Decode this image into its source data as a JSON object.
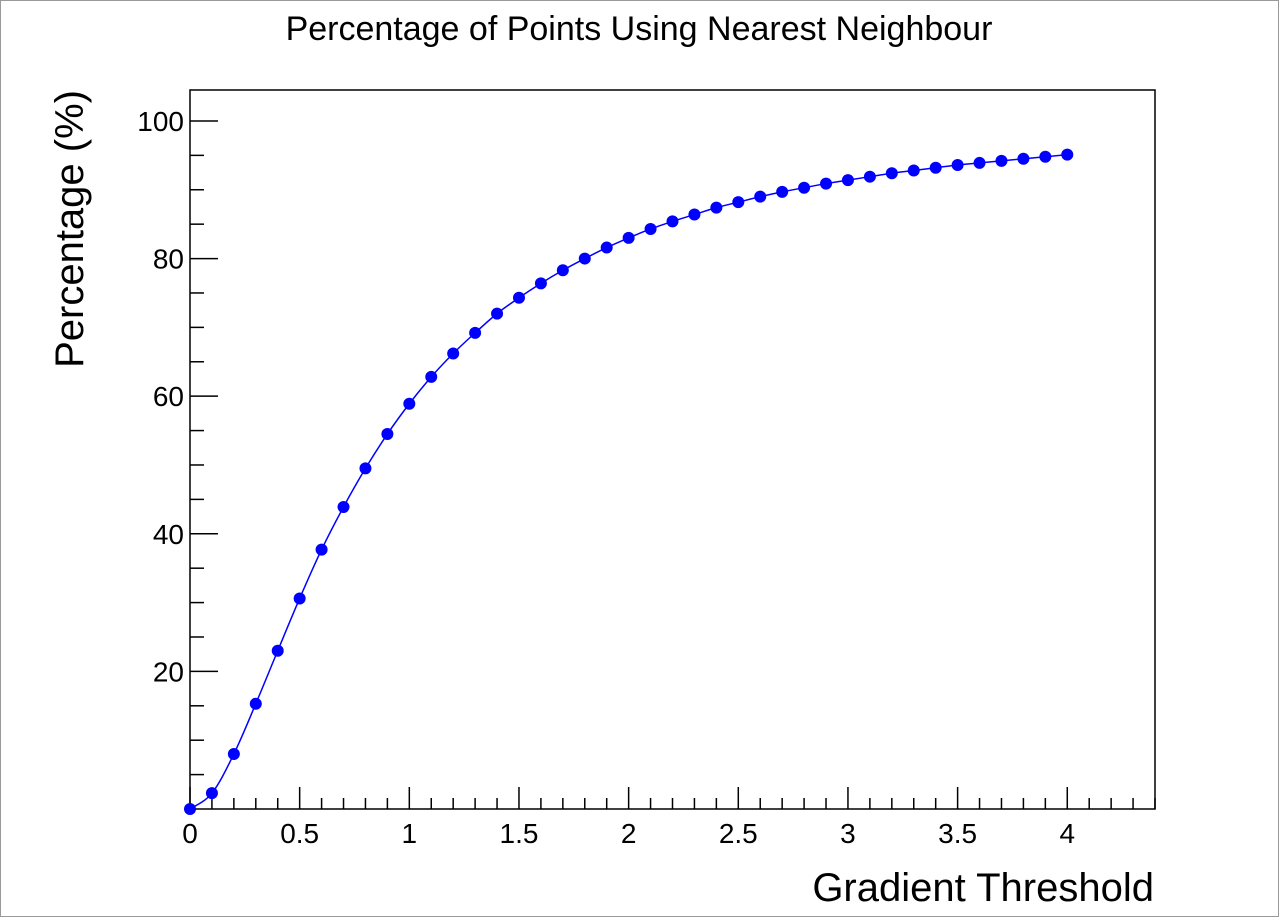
{
  "chart_data": {
    "type": "line",
    "title": "Percentage of Points Using Nearest Neighbour",
    "xlabel": "Gradient Threshold",
    "ylabel": "Percentage (%)",
    "xlim": [
      0,
      4.4
    ],
    "ylim": [
      0,
      104.5
    ],
    "x_ticks": [
      0,
      0.5,
      1,
      1.5,
      2,
      2.5,
      3,
      3.5,
      4
    ],
    "x_tick_labels": [
      "0",
      "0.5",
      "1",
      "1.5",
      "2",
      "2.5",
      "3",
      "3.5",
      "4"
    ],
    "y_ticks": [
      20,
      40,
      60,
      80,
      100
    ],
    "y_tick_labels": [
      "20",
      "40",
      "60",
      "80",
      "100"
    ],
    "x_minor_step": 0.1,
    "y_minor_step": 5,
    "grid": false,
    "legend": "none",
    "series": [
      {
        "color": "#0000ff",
        "marker": "circle",
        "x": [
          0,
          0.1,
          0.2,
          0.3,
          0.4,
          0.5,
          0.6,
          0.7,
          0.8,
          0.9,
          1.0,
          1.1,
          1.2,
          1.3,
          1.4,
          1.5,
          1.6,
          1.7,
          1.8,
          1.9,
          2.0,
          2.1,
          2.2,
          2.3,
          2.4,
          2.5,
          2.6,
          2.7,
          2.8,
          2.9,
          3.0,
          3.1,
          3.2,
          3.3,
          3.4,
          3.5,
          3.6,
          3.7,
          3.8,
          3.9,
          4.0
        ],
        "values": [
          0.0,
          2.3,
          8.0,
          15.3,
          23.0,
          30.6,
          37.7,
          43.9,
          49.5,
          54.5,
          58.9,
          62.8,
          66.2,
          69.2,
          72.0,
          74.3,
          76.4,
          78.3,
          80.0,
          81.6,
          83.0,
          84.3,
          85.4,
          86.4,
          87.4,
          88.2,
          89.0,
          89.7,
          90.3,
          90.9,
          91.4,
          91.9,
          92.4,
          92.8,
          93.2,
          93.6,
          93.9,
          94.2,
          94.5,
          94.8,
          95.1
        ]
      }
    ]
  }
}
